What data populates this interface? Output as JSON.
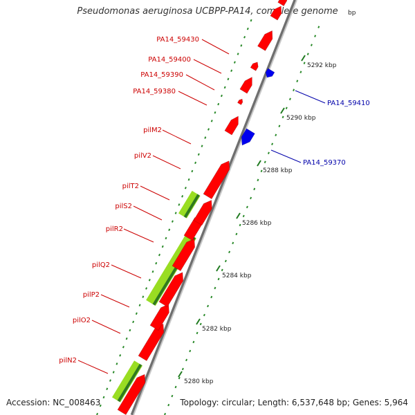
{
  "title": "Pseudomonas aeruginosa UCBPP-PA14, complete genome",
  "accession": "Accession: NC_008463",
  "summary": "Topology: circular; Length: 6,537,648 bp; Genes: 5,964",
  "colors": {
    "backbone": "#9e9e9e",
    "gene_forward": "#ff0000",
    "gene_reverse": "#0000ee",
    "feature_band": "#99dd22",
    "dots": "#2a8a2a",
    "label_forward": "#cc0000",
    "label_reverse": "#0000aa",
    "tick_text": "#222222"
  },
  "scale_labels": [
    "5292 kbp",
    "5290 kbp",
    "5288 kbp",
    "5286 kbp",
    "5284 kbp",
    "5282 kbp",
    "5280 kbp"
  ],
  "clipped_scale_label": "bp",
  "forward_gene_labels": [
    "PA14_59430",
    "PA14_59400",
    "PA14_59390",
    "PA14_59380",
    "pilM2",
    "pilV2",
    "pilT2",
    "pilS2",
    "pilR2",
    "pilQ2",
    "pilP2",
    "pilO2",
    "pilN2"
  ],
  "reverse_gene_labels": [
    "PA14_59410",
    "PA14_59370"
  ]
}
